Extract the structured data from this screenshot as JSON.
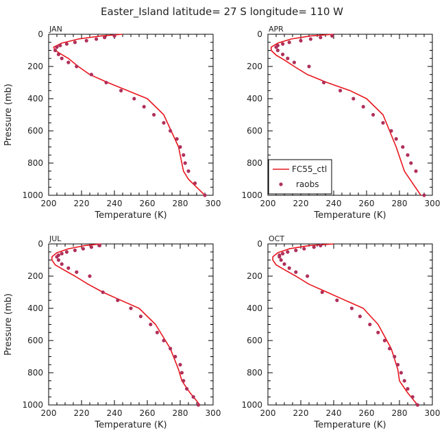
{
  "figure": {
    "title": "Easter_Island  latitude= 27 S longitude= 110 W"
  },
  "colors": {
    "model_line": "#e8141c",
    "obs_point": "#b0305a",
    "axis": "#000000"
  },
  "legend": {
    "model_label": "FC55_ctl",
    "obs_label": "raobs"
  },
  "chart_data": [
    {
      "type": "line",
      "panel": "JAN",
      "xlabel": "Temperature (K)",
      "ylabel": "Pressure (mb)",
      "xlim": [
        200,
        300
      ],
      "ylim": [
        1000,
        0
      ],
      "xticks": [
        200,
        220,
        240,
        260,
        280,
        300
      ],
      "yticks": [
        0,
        200,
        400,
        600,
        800,
        1000
      ],
      "series": [
        {
          "name": "FC55_ctl",
          "kind": "line",
          "x": [
            245,
            232,
            218,
            208,
            203,
            204,
            207,
            212,
            218,
            225,
            236,
            248,
            260,
            270,
            279,
            282,
            285,
            290,
            295
          ],
          "y": [
            0,
            10,
            30,
            55,
            80,
            100,
            120,
            150,
            200,
            250,
            300,
            350,
            400,
            500,
            700,
            850,
            900,
            950,
            1000
          ]
        },
        {
          "name": "raobs",
          "kind": "scatter",
          "x": [
            240,
            234,
            229,
            223,
            216,
            211,
            207,
            205,
            204,
            206,
            208,
            212,
            217,
            226,
            235,
            244,
            252,
            258,
            264,
            270,
            274,
            278,
            280,
            282,
            283,
            285,
            289,
            295
          ],
          "y": [
            10,
            20,
            30,
            40,
            50,
            60,
            70,
            80,
            100,
            125,
            150,
            175,
            200,
            250,
            300,
            350,
            400,
            450,
            500,
            550,
            600,
            650,
            700,
            750,
            800,
            850,
            925,
            1000
          ]
        }
      ]
    },
    {
      "type": "line",
      "panel": "APR",
      "xlabel": "Temperature (K)",
      "ylabel": "",
      "xlim": [
        200,
        300
      ],
      "ylim": [
        1000,
        0
      ],
      "xticks": [
        200,
        220,
        240,
        260,
        280,
        300
      ],
      "yticks": [
        0,
        200,
        400,
        600,
        800,
        1000
      ],
      "legend_position": "lower-left",
      "series": [
        {
          "name": "FC55_ctl",
          "kind": "line",
          "x": [
            240,
            226,
            214,
            206,
            202,
            202,
            205,
            210,
            216,
            224,
            236,
            250,
            260,
            270,
            278,
            283,
            288,
            293
          ],
          "y": [
            0,
            10,
            30,
            55,
            80,
            100,
            130,
            160,
            200,
            250,
            300,
            350,
            400,
            500,
            700,
            850,
            925,
            1000
          ]
        },
        {
          "name": "raobs",
          "kind": "scatter",
          "x": [
            239,
            232,
            226,
            220,
            213,
            209,
            206,
            205,
            206,
            209,
            212,
            216,
            225,
            234,
            244,
            252,
            258,
            264,
            270,
            275,
            278,
            282,
            285,
            287,
            290,
            295
          ],
          "y": [
            10,
            20,
            30,
            40,
            50,
            60,
            70,
            80,
            100,
            125,
            150,
            175,
            200,
            300,
            350,
            400,
            450,
            500,
            550,
            600,
            650,
            700,
            750,
            800,
            850,
            1000
          ]
        }
      ]
    },
    {
      "type": "line",
      "panel": "JUL",
      "xlabel": "Temperature (K)",
      "ylabel": "Pressure (mb)",
      "xlim": [
        200,
        300
      ],
      "ylim": [
        1000,
        0
      ],
      "xticks": [
        200,
        220,
        240,
        260,
        280,
        300
      ],
      "yticks": [
        0,
        200,
        400,
        600,
        800,
        1000
      ],
      "series": [
        {
          "name": "FC55_ctl",
          "kind": "line",
          "x": [
            232,
            222,
            212,
            205,
            202,
            202,
            204,
            209,
            216,
            224,
            233,
            244,
            255,
            265,
            274,
            279,
            281,
            286,
            292
          ],
          "y": [
            0,
            10,
            30,
            55,
            80,
            100,
            130,
            160,
            200,
            250,
            300,
            350,
            400,
            500,
            650,
            780,
            850,
            925,
            1000
          ]
        },
        {
          "name": "raobs",
          "kind": "scatter",
          "x": [
            231,
            226,
            221,
            216,
            211,
            208,
            206,
            205,
            206,
            208,
            212,
            217,
            225,
            233,
            242,
            250,
            256,
            262,
            266,
            270,
            274,
            277,
            280,
            281,
            282,
            284,
            288,
            291
          ],
          "y": [
            10,
            20,
            30,
            40,
            50,
            60,
            70,
            80,
            100,
            125,
            150,
            175,
            200,
            300,
            350,
            400,
            450,
            500,
            550,
            600,
            650,
            700,
            750,
            800,
            850,
            900,
            950,
            1000
          ]
        }
      ]
    },
    {
      "type": "line",
      "panel": "OCT",
      "xlabel": "Temperature (K)",
      "ylabel": "",
      "xlim": [
        200,
        300
      ],
      "ylim": [
        1000,
        0
      ],
      "xticks": [
        200,
        220,
        240,
        260,
        280,
        300
      ],
      "yticks": [
        0,
        200,
        400,
        600,
        800,
        1000
      ],
      "series": [
        {
          "name": "FC55_ctl",
          "kind": "line",
          "x": [
            240,
            225,
            213,
            206,
            203,
            203,
            205,
            210,
            217,
            225,
            236,
            247,
            258,
            267,
            275,
            279,
            280,
            285,
            291
          ],
          "y": [
            0,
            10,
            30,
            55,
            80,
            100,
            130,
            160,
            200,
            250,
            300,
            350,
            400,
            500,
            650,
            780,
            850,
            925,
            1000
          ]
        },
        {
          "name": "raobs",
          "kind": "scatter",
          "x": [
            232,
            228,
            222,
            217,
            212,
            209,
            207,
            207,
            208,
            210,
            213,
            217,
            224,
            233,
            242,
            251,
            256,
            262,
            267,
            271,
            274,
            277,
            279,
            281,
            283,
            285,
            288,
            291
          ],
          "y": [
            10,
            20,
            30,
            40,
            50,
            60,
            70,
            80,
            100,
            125,
            150,
            175,
            200,
            300,
            350,
            400,
            450,
            500,
            550,
            600,
            650,
            700,
            750,
            800,
            850,
            900,
            950,
            1000
          ]
        }
      ]
    }
  ]
}
